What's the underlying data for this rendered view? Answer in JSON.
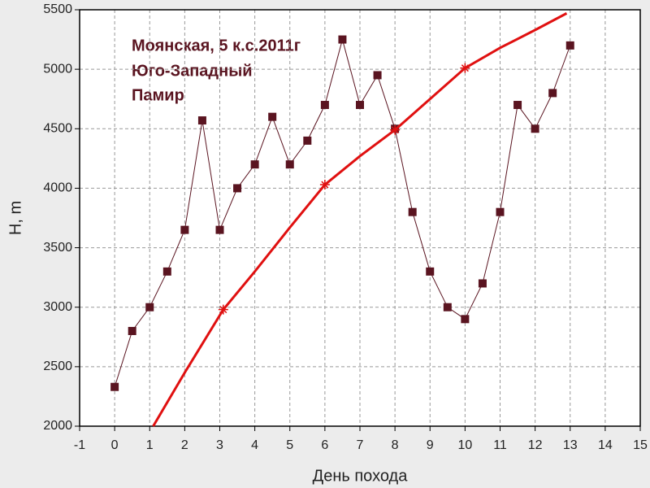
{
  "chart_data": {
    "type": "line",
    "annotation": [
      "Моянская, 5 к.с.2011г",
      "Юго-Западный",
      "Памир"
    ],
    "x_label": "День похода",
    "y_label": "H, m",
    "xlim": [
      -1,
      15
    ],
    "xticks": [
      -1,
      0,
      1,
      2,
      3,
      4,
      5,
      6,
      7,
      8,
      9,
      10,
      11,
      12,
      13,
      14,
      15
    ],
    "ylim": [
      2000,
      5500
    ],
    "yticks": [
      2000,
      2500,
      3000,
      3500,
      4000,
      4500,
      5000,
      5500
    ],
    "grid": true,
    "series": [
      {
        "color": "#5a1420",
        "marker": "square",
        "x": [
          0,
          0.5,
          1,
          1.5,
          2,
          2.5,
          3,
          3.5,
          4,
          4.5,
          5,
          5.5,
          6,
          6.5,
          7,
          7.5,
          8,
          8.5,
          9,
          9.5,
          10,
          10.5,
          11,
          11.5,
          12,
          12.5,
          13
        ],
        "values": [
          2330,
          2800,
          3000,
          3300,
          3650,
          4570,
          3650,
          4000,
          4200,
          4600,
          4200,
          4400,
          4700,
          5250,
          4700,
          4950,
          4500,
          3800,
          3300,
          3000,
          2900,
          3200,
          3800,
          4700,
          4500,
          4800,
          5200
        ]
      },
      {
        "color": "#e01010",
        "marker": "none",
        "x": [
          1.1,
          2,
          3.1,
          4,
          5,
          6,
          7,
          8,
          9,
          10,
          11,
          12,
          12.9
        ],
        "values": [
          2000,
          2450,
          2980,
          3300,
          3670,
          4030,
          4270,
          4490,
          4750,
          5010,
          5180,
          5330,
          5470
        ]
      },
      {
        "color": "#e01010",
        "marker": "star",
        "x": [
          3.1,
          6,
          8,
          10
        ],
        "values": [
          2980,
          4030,
          4490,
          5010
        ]
      }
    ]
  }
}
